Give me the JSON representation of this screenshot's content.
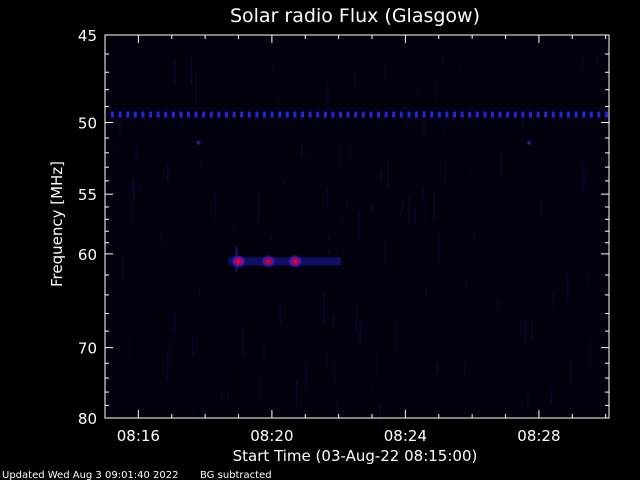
{
  "chart_data": {
    "type": "heatmap",
    "title": "Solar radio Flux (Glasgow)",
    "xlabel": "Start Time (03-Aug-22 08:15:00)",
    "ylabel": "Frequency [MHz]",
    "x_unit": "minutes after 08:00",
    "xlim": [
      15.0,
      30.1
    ],
    "ylim": [
      80,
      45
    ],
    "y_scale": "reciprocal",
    "x_ticks": [
      {
        "value": 16,
        "label": "08:16"
      },
      {
        "value": 20,
        "label": "08:20"
      },
      {
        "value": 24,
        "label": "08:24"
      },
      {
        "value": 28,
        "label": "08:28"
      }
    ],
    "y_major_ticks": [
      {
        "value": 45,
        "label": "45"
      },
      {
        "value": 50,
        "label": "50"
      },
      {
        "value": 55,
        "label": "55"
      },
      {
        "value": 60,
        "label": "60"
      },
      {
        "value": 70,
        "label": "70"
      },
      {
        "value": 80,
        "label": "80"
      }
    ],
    "y_minor_ticks": [
      46,
      47,
      48,
      49,
      51,
      52,
      53,
      54,
      56,
      57,
      58,
      59,
      62,
      64,
      66,
      68,
      72,
      74,
      76,
      78
    ],
    "grid": false,
    "background_color": "#02020e",
    "interference_line_mhz": 49.5,
    "features": [
      {
        "name": "burst",
        "t": 19.0,
        "f": 60.7,
        "intensity": 1.0
      },
      {
        "name": "burst",
        "t": 19.9,
        "f": 60.7,
        "intensity": 0.8
      },
      {
        "name": "burst",
        "t": 20.7,
        "f": 60.7,
        "intensity": 0.9
      },
      {
        "name": "spot",
        "t": 17.8,
        "f": 51.3,
        "intensity": 0.5
      },
      {
        "name": "spot",
        "t": 27.7,
        "f": 51.3,
        "intensity": 0.5
      }
    ]
  },
  "footer": {
    "updated": "Updated Wed Aug  3 09:01:40 2022",
    "note": "BG subtracted"
  }
}
